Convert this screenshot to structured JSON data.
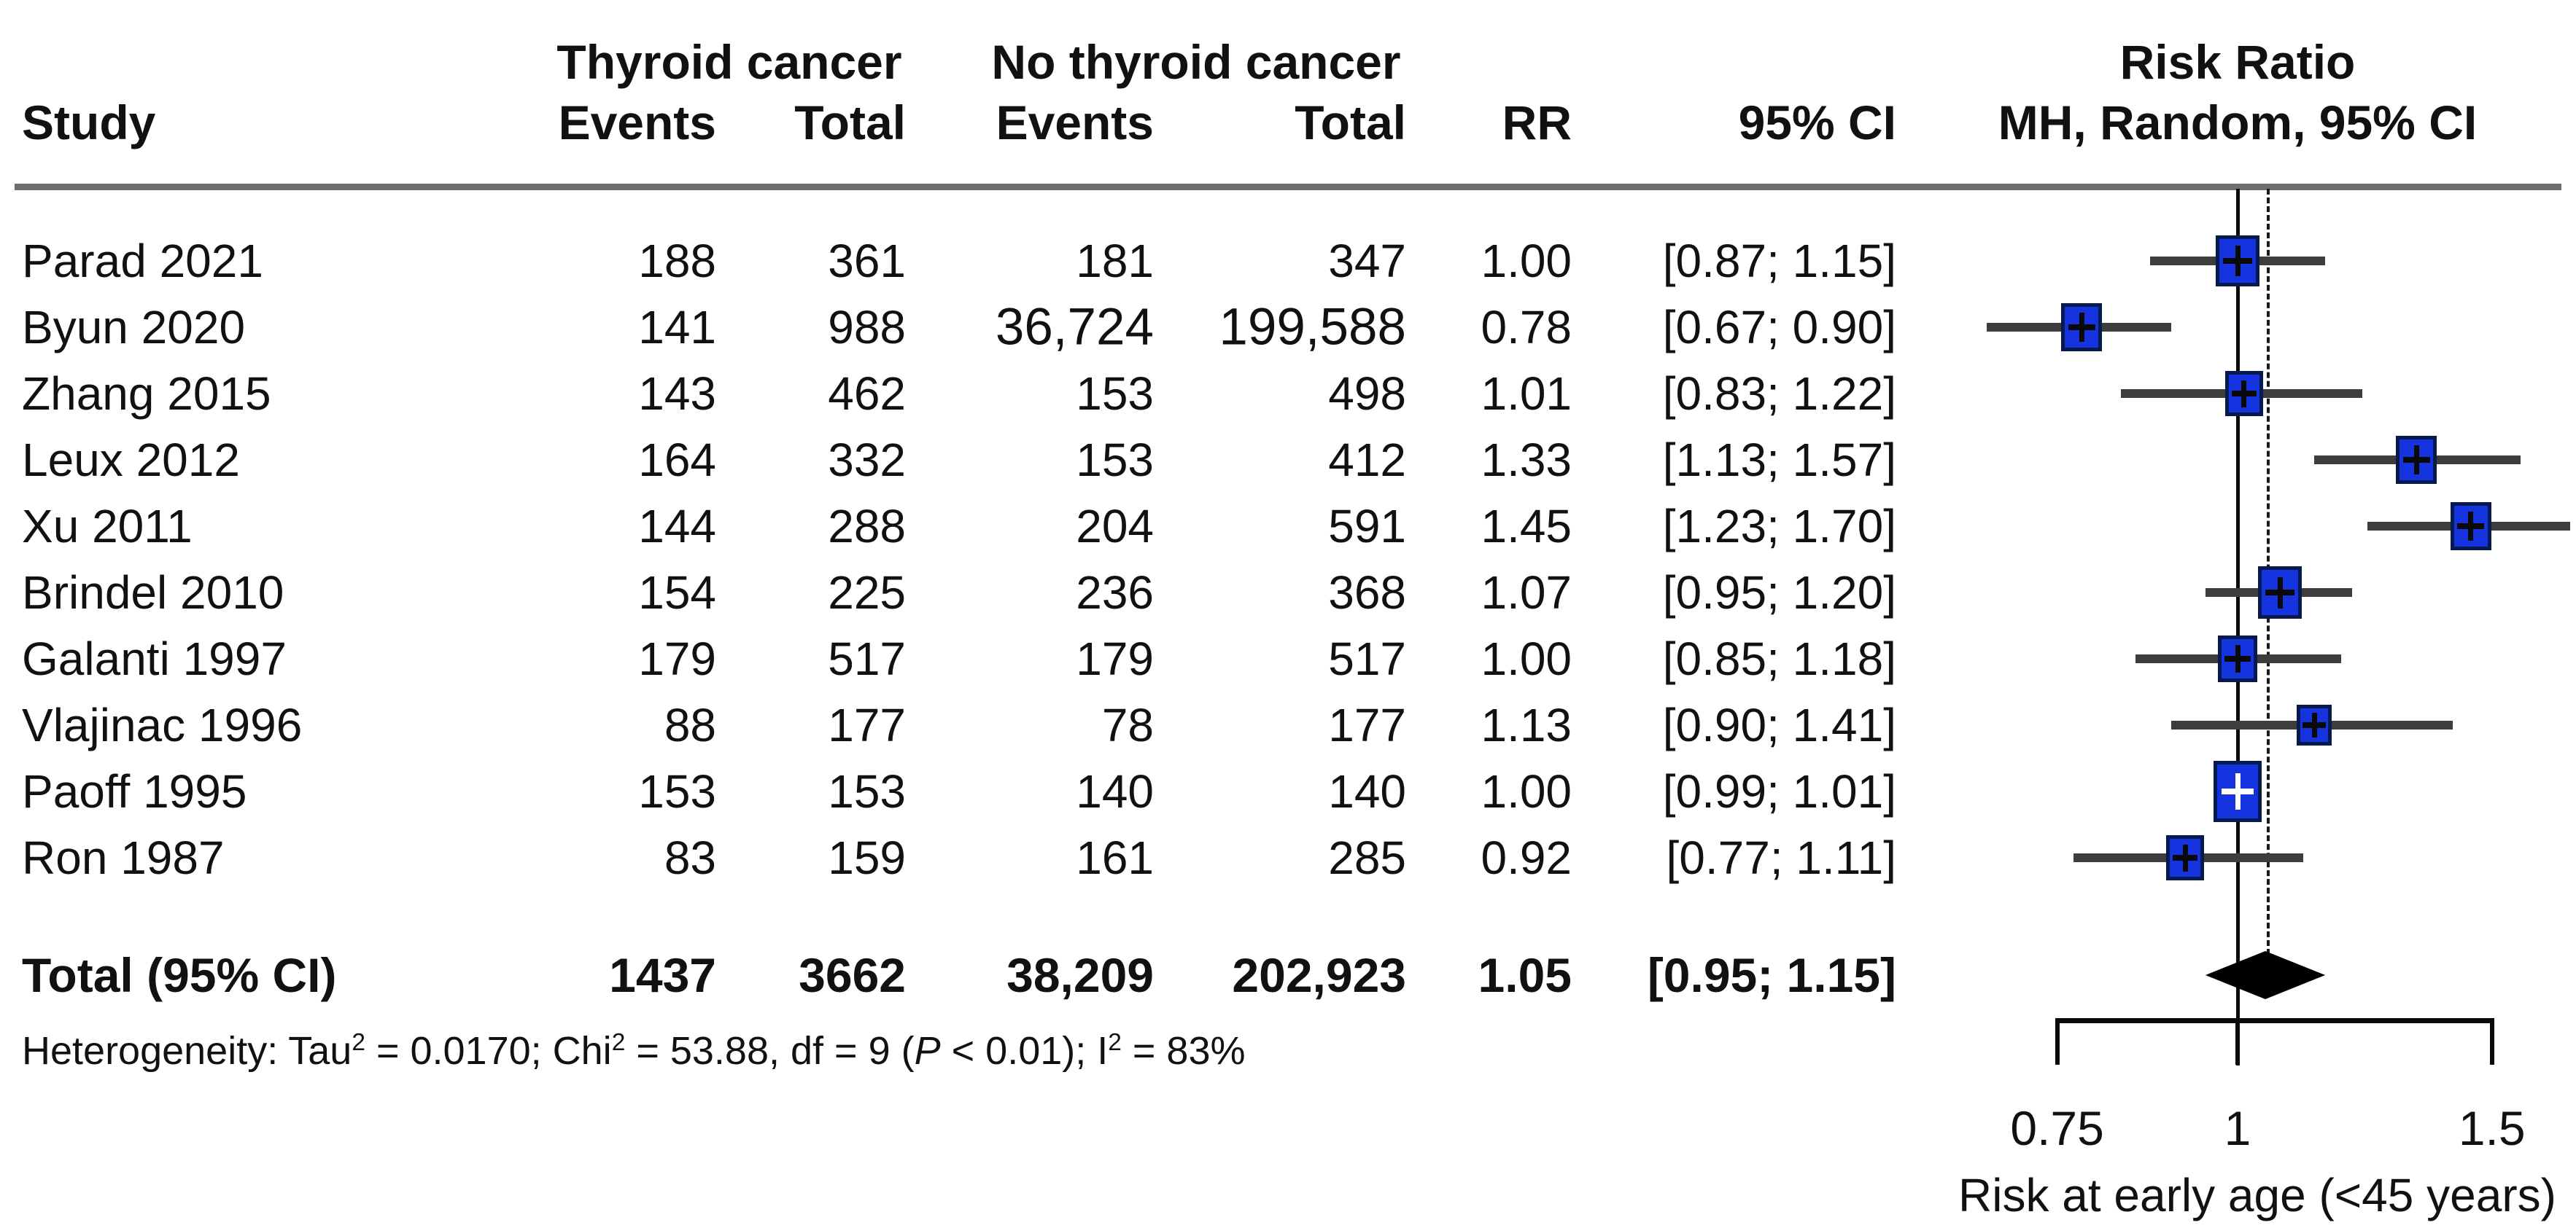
{
  "header": {
    "study": "Study",
    "group1": "Thyroid cancer",
    "group2": "No thyroid cancer",
    "col_events": "Events",
    "col_total": "Total",
    "col_rr": "RR",
    "col_ci": "95% CI",
    "plot_title_line1": "Risk Ratio",
    "plot_title_line2": "MH, Random, 95% CI"
  },
  "colors": {
    "square_fill": "#1633e0",
    "square_border": "#071a4d",
    "ci_line": "#3d3d3d",
    "diamond": "#000000",
    "rule": "#6e6e6e",
    "text": "#111111"
  },
  "chart_data": {
    "type": "forest",
    "title": "Risk Ratio — MH, Random, 95% CI",
    "xlabel": "Risk at early age (<45 years)",
    "x_scale": "log",
    "x_ticks": [
      "0.75",
      "1",
      "1.5"
    ],
    "x_tick_values": [
      0.75,
      1,
      1.5
    ],
    "ref_line_value": 1,
    "pooled_dashed_line_value": 1.05,
    "studies": [
      {
        "study": "Parad 2021",
        "events1": "188",
        "total1": "361",
        "events2": "181",
        "total2": "347",
        "rr": "1.00",
        "ci": "[0.87; 1.15]",
        "rr_value": 1.0,
        "ci_low": 0.87,
        "ci_high": 1.15,
        "square": [
          60,
          70
        ],
        "plus": "black",
        "alt_font": false
      },
      {
        "study": "Byun 2020",
        "events1": "141",
        "total1": "988",
        "events2": "36,724",
        "total2": "199,588",
        "rr": "0.78",
        "ci": "[0.67; 0.90]",
        "rr_value": 0.78,
        "ci_low": 0.67,
        "ci_high": 0.9,
        "square": [
          56,
          66
        ],
        "plus": "black",
        "alt_font": true
      },
      {
        "study": "Zhang 2015",
        "events1": "143",
        "total1": "462",
        "events2": "153",
        "total2": "498",
        "rr": "1.01",
        "ci": "[0.83; 1.22]",
        "rr_value": 1.01,
        "ci_low": 0.83,
        "ci_high": 1.22,
        "square": [
          52,
          62
        ],
        "plus": "black",
        "alt_font": false
      },
      {
        "study": "Leux 2012",
        "events1": "164",
        "total1": "332",
        "events2": "153",
        "total2": "412",
        "rr": "1.33",
        "ci": "[1.13; 1.57]",
        "rr_value": 1.33,
        "ci_low": 1.13,
        "ci_high": 1.57,
        "square": [
          56,
          66
        ],
        "plus": "black",
        "alt_font": false
      },
      {
        "study": "Xu 2011",
        "events1": "144",
        "total1": "288",
        "events2": "204",
        "total2": "591",
        "rr": "1.45",
        "ci": "[1.23; 1.70]",
        "rr_value": 1.45,
        "ci_low": 1.23,
        "ci_high": 1.7,
        "square": [
          56,
          66
        ],
        "plus": "black",
        "alt_font": false
      },
      {
        "study": "Brindel 2010",
        "events1": "154",
        "total1": "225",
        "events2": "236",
        "total2": "368",
        "rr": "1.07",
        "ci": "[0.95; 1.20]",
        "rr_value": 1.07,
        "ci_low": 0.95,
        "ci_high": 1.2,
        "square": [
          60,
          72
        ],
        "plus": "black",
        "alt_font": false
      },
      {
        "study": "Galanti 1997",
        "events1": "179",
        "total1": "517",
        "events2": "179",
        "total2": "517",
        "rr": "1.00",
        "ci": "[0.85; 1.18]",
        "rr_value": 1.0,
        "ci_low": 0.85,
        "ci_high": 1.18,
        "square": [
          54,
          64
        ],
        "plus": "black",
        "alt_font": false
      },
      {
        "study": "Vlajinac 1996",
        "events1": "88",
        "total1": "177",
        "events2": "78",
        "total2": "177",
        "rr": "1.13",
        "ci": "[0.90; 1.41]",
        "rr_value": 1.13,
        "ci_low": 0.9,
        "ci_high": 1.41,
        "square": [
          48,
          56
        ],
        "plus": "black",
        "alt_font": false
      },
      {
        "study": "Paoff 1995",
        "events1": "153",
        "total1": "153",
        "events2": "140",
        "total2": "140",
        "rr": "1.00",
        "ci": "[0.99; 1.01]",
        "rr_value": 1.0,
        "ci_low": 0.99,
        "ci_high": 1.01,
        "square": [
          66,
          84
        ],
        "plus": "white",
        "alt_font": false
      },
      {
        "study": "Ron 1987",
        "events1": "83",
        "total1": "159",
        "events2": "161",
        "total2": "285",
        "rr": "0.92",
        "ci": "[0.77; 1.11]",
        "rr_value": 0.92,
        "ci_low": 0.77,
        "ci_high": 1.11,
        "square": [
          52,
          62
        ],
        "plus": "black",
        "alt_font": false
      }
    ],
    "total": {
      "label": "Total (95% CI)",
      "events1": "1437",
      "total1": "3662",
      "events2": "38,209",
      "total2": "202,923",
      "rr": "1.05",
      "ci": "[0.95; 1.15]",
      "rr_value": 1.05,
      "ci_low": 0.95,
      "ci_high": 1.15
    },
    "heterogeneity": {
      "prefix": "Heterogeneity: Tau",
      "sup1": "2",
      "seg1": " = 0.0170; Chi",
      "sup2": "2",
      "seg2": " = 53.88, df = 9 (",
      "p": "P",
      "seg3": " < 0.01); I",
      "sup3": "2",
      "seg4": " = 83%"
    }
  }
}
